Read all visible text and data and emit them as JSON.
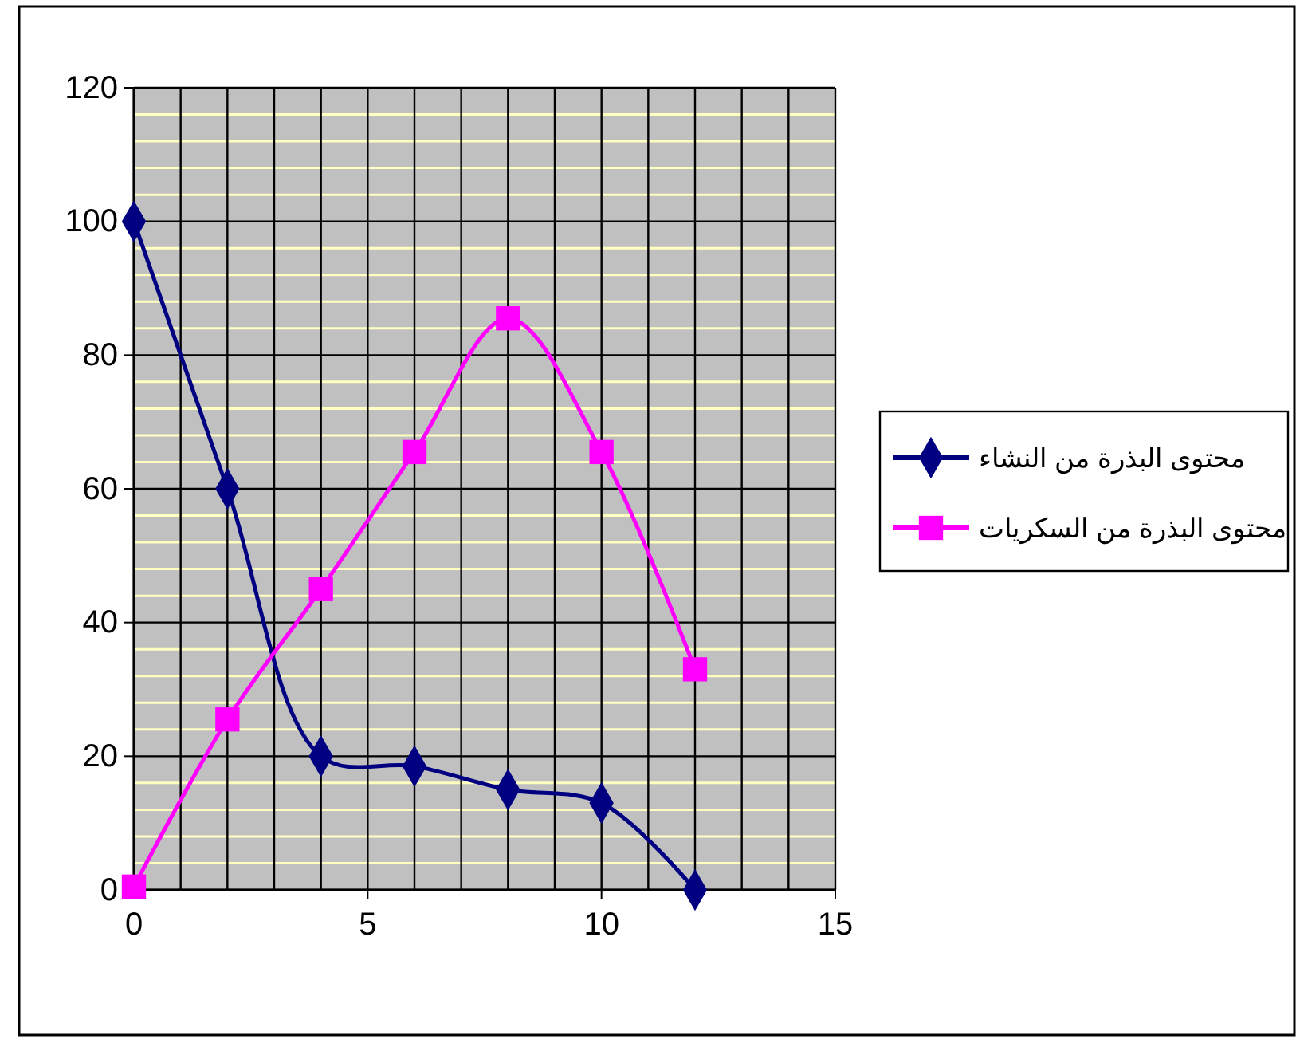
{
  "chart_data": {
    "type": "line",
    "x": [
      0,
      2,
      4,
      6,
      8,
      10,
      12
    ],
    "series": [
      {
        "name": "محتوى البذرة من النشاء",
        "color": "#000080",
        "marker": "diamond",
        "values": [
          100,
          60,
          20,
          18.5,
          15,
          13,
          0
        ]
      },
      {
        "name": "محتوى البذرة من السكريات",
        "color": "#ff00ff",
        "marker": "square",
        "values": [
          0.5,
          25.5,
          45,
          65.5,
          85.5,
          65.5,
          33
        ]
      }
    ],
    "xlim": [
      0,
      15
    ],
    "xticks": [
      0,
      {
        "value": 1,
        "label": null
      },
      {
        "value": 2,
        "label": null
      },
      {
        "value": 3,
        "label": null
      },
      {
        "value": 4,
        "label": null
      },
      5,
      {
        "value": 6,
        "label": null
      },
      {
        "value": 7,
        "label": null
      },
      {
        "value": 8,
        "label": null
      },
      {
        "value": 9,
        "label": null
      },
      10,
      {
        "value": 11,
        "label": null
      },
      {
        "value": 12,
        "label": null
      },
      {
        "value": 13,
        "label": null
      },
      {
        "value": 14,
        "label": null
      },
      15
    ],
    "ylim": [
      0,
      120
    ],
    "yticks": [
      0,
      {
        "value": 4,
        "label": null
      },
      {
        "value": 8,
        "label": null
      },
      {
        "value": 12,
        "label": null
      },
      {
        "value": 16,
        "label": null
      },
      20,
      {
        "value": 24,
        "label": null
      },
      {
        "value": 28,
        "label": null
      },
      {
        "value": 32,
        "label": null
      },
      {
        "value": 36,
        "label": null
      },
      40,
      {
        "value": 44,
        "label": null
      },
      {
        "value": 48,
        "label": null
      },
      {
        "value": 52,
        "label": null
      },
      {
        "value": 56,
        "label": null
      },
      60,
      {
        "value": 64,
        "label": null
      },
      {
        "value": 68,
        "label": null
      },
      {
        "value": 72,
        "label": null
      },
      {
        "value": 76,
        "label": null
      },
      80,
      {
        "value": 84,
        "label": null
      },
      {
        "value": 88,
        "label": null
      },
      {
        "value": 92,
        "label": null
      },
      {
        "value": 96,
        "label": null
      },
      100,
      {
        "value": 104,
        "label": null
      },
      {
        "value": 108,
        "label": null
      },
      {
        "value": 112,
        "label": null
      },
      {
        "value": 116,
        "label": null
      },
      120
    ],
    "grid": true,
    "legend": "right"
  }
}
